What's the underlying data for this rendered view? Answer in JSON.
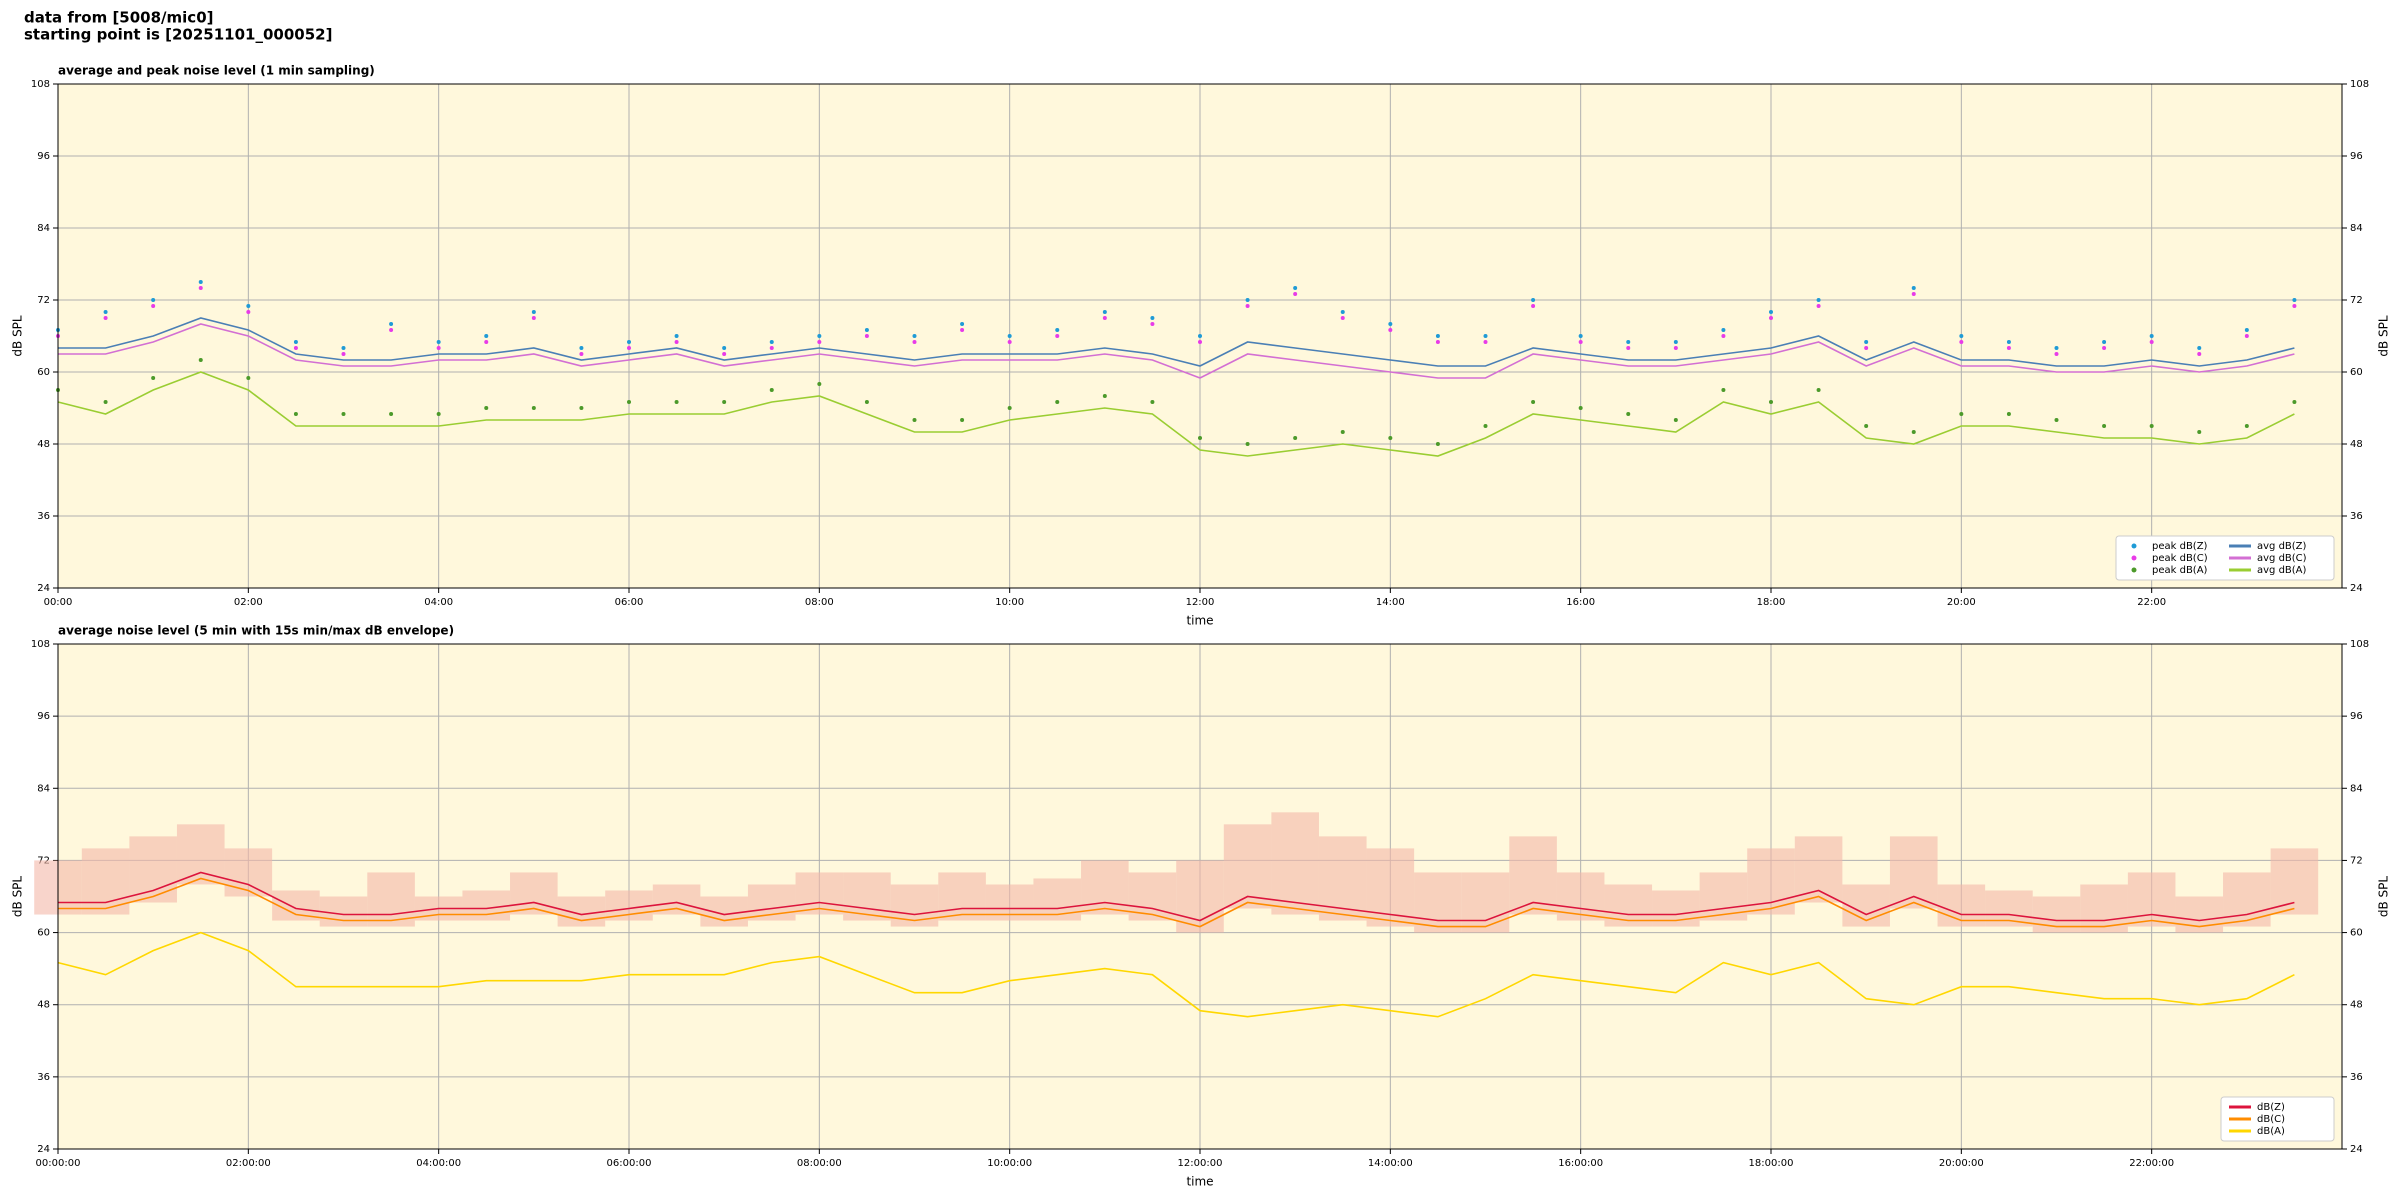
{
  "header": {
    "lines": [
      "data from [5008/mic0]",
      "starting point is [20251101_000052]"
    ]
  },
  "chart_data": [
    {
      "type": "scatter_line",
      "title": "average and peak noise level (1 min sampling)",
      "xlabel": "time",
      "ylabel": "dB SPL",
      "xlim": [
        0,
        1440
      ],
      "ylim": [
        24,
        108
      ],
      "yticks": [
        24,
        36,
        48,
        60,
        72,
        84,
        96,
        108
      ],
      "xticks": [
        {
          "value": 0,
          "label": "00:00"
        },
        {
          "value": 120,
          "label": "02:00"
        },
        {
          "value": 240,
          "label": "04:00"
        },
        {
          "value": 360,
          "label": "06:00"
        },
        {
          "value": 480,
          "label": "08:00"
        },
        {
          "value": 600,
          "label": "10:00"
        },
        {
          "value": 720,
          "label": "12:00"
        },
        {
          "value": 840,
          "label": "14:00"
        },
        {
          "value": 960,
          "label": "16:00"
        },
        {
          "value": 1080,
          "label": "18:00"
        },
        {
          "value": 1200,
          "label": "20:00"
        },
        {
          "value": 1320,
          "label": "22:00"
        }
      ],
      "grid": true,
      "legend": "lower right",
      "x": [
        0,
        30,
        60,
        90,
        120,
        150,
        180,
        210,
        240,
        270,
        300,
        330,
        360,
        390,
        420,
        450,
        480,
        510,
        540,
        570,
        600,
        630,
        660,
        690,
        720,
        750,
        780,
        810,
        840,
        870,
        900,
        930,
        960,
        990,
        1020,
        1050,
        1080,
        1110,
        1140,
        1170,
        1200,
        1230,
        1260,
        1290,
        1320,
        1350,
        1380,
        1410
      ],
      "series": [
        {
          "name": "peak dB(Z)",
          "kind": "scatter",
          "color": "#1f9bd6",
          "values": [
            67,
            70,
            72,
            75,
            71,
            65,
            64,
            68,
            65,
            66,
            70,
            64,
            65,
            66,
            64,
            65,
            66,
            67,
            66,
            68,
            66,
            67,
            70,
            69,
            66,
            72,
            74,
            70,
            68,
            66,
            66,
            72,
            66,
            65,
            65,
            67,
            70,
            72,
            65,
            74,
            66,
            65,
            64,
            65,
            66,
            64,
            67,
            72
          ]
        },
        {
          "name": "peak dB(C)",
          "kind": "scatter",
          "color": "#e83be8",
          "values": [
            66,
            69,
            71,
            74,
            70,
            64,
            63,
            67,
            64,
            65,
            69,
            63,
            64,
            65,
            63,
            64,
            65,
            66,
            65,
            67,
            65,
            66,
            69,
            68,
            65,
            71,
            73,
            69,
            67,
            65,
            65,
            71,
            65,
            64,
            64,
            66,
            69,
            71,
            64,
            73,
            65,
            64,
            63,
            64,
            65,
            63,
            66,
            71
          ]
        },
        {
          "name": "peak dB(A)",
          "kind": "scatter",
          "color": "#4c9a2a",
          "values": [
            57,
            55,
            59,
            62,
            59,
            53,
            53,
            53,
            53,
            54,
            54,
            54,
            55,
            55,
            55,
            57,
            58,
            55,
            52,
            52,
            54,
            55,
            56,
            55,
            49,
            48,
            49,
            50,
            49,
            48,
            51,
            55,
            54,
            53,
            52,
            57,
            55,
            57,
            51,
            50,
            53,
            53,
            52,
            51,
            51,
            50,
            51,
            55
          ]
        },
        {
          "name": "avg dB(Z)",
          "kind": "line",
          "color": "#4a7fb5",
          "values": [
            64,
            64,
            66,
            69,
            67,
            63,
            62,
            62,
            63,
            63,
            64,
            62,
            63,
            64,
            62,
            63,
            64,
            63,
            62,
            63,
            63,
            63,
            64,
            63,
            61,
            65,
            64,
            63,
            62,
            61,
            61,
            64,
            63,
            62,
            62,
            63,
            64,
            66,
            62,
            65,
            62,
            62,
            61,
            61,
            62,
            61,
            62,
            64
          ]
        },
        {
          "name": "avg dB(C)",
          "kind": "line",
          "color": "#d36fd3",
          "values": [
            63,
            63,
            65,
            68,
            66,
            62,
            61,
            61,
            62,
            62,
            63,
            61,
            62,
            63,
            61,
            62,
            63,
            62,
            61,
            62,
            62,
            62,
            63,
            62,
            59,
            63,
            62,
            61,
            60,
            59,
            59,
            63,
            62,
            61,
            61,
            62,
            63,
            65,
            61,
            64,
            61,
            61,
            60,
            60,
            61,
            60,
            61,
            63
          ]
        },
        {
          "name": "avg dB(A)",
          "kind": "line",
          "color": "#9acd32",
          "values": [
            55,
            53,
            57,
            60,
            57,
            51,
            51,
            51,
            51,
            52,
            52,
            52,
            53,
            53,
            53,
            55,
            56,
            53,
            50,
            50,
            52,
            53,
            54,
            53,
            47,
            46,
            47,
            48,
            47,
            46,
            49,
            53,
            52,
            51,
            50,
            55,
            53,
            55,
            49,
            48,
            51,
            51,
            50,
            49,
            49,
            48,
            49,
            53
          ]
        }
      ]
    },
    {
      "type": "envelope_line",
      "title": "average noise level (5 min with 15s min/max dB envelope)",
      "xlabel": "time",
      "ylabel": "dB SPL",
      "xlim": [
        0,
        1440
      ],
      "ylim": [
        24,
        108
      ],
      "yticks": [
        24,
        36,
        48,
        60,
        72,
        84,
        96,
        108
      ],
      "xticks": [
        {
          "value": 0,
          "label": "00:00:00"
        },
        {
          "value": 120,
          "label": "02:00:00"
        },
        {
          "value": 240,
          "label": "04:00:00"
        },
        {
          "value": 360,
          "label": "06:00:00"
        },
        {
          "value": 480,
          "label": "08:00:00"
        },
        {
          "value": 600,
          "label": "10:00:00"
        },
        {
          "value": 720,
          "label": "12:00:00"
        },
        {
          "value": 840,
          "label": "14:00:00"
        },
        {
          "value": 960,
          "label": "16:00:00"
        },
        {
          "value": 1080,
          "label": "18:00:00"
        },
        {
          "value": 1200,
          "label": "20:00:00"
        },
        {
          "value": 1320,
          "label": "22:00:00"
        }
      ],
      "grid": true,
      "legend": "lower right",
      "x": [
        0,
        30,
        60,
        90,
        120,
        150,
        180,
        210,
        240,
        270,
        300,
        330,
        360,
        390,
        420,
        450,
        480,
        510,
        540,
        570,
        600,
        630,
        660,
        690,
        720,
        750,
        780,
        810,
        840,
        870,
        900,
        930,
        960,
        990,
        1020,
        1050,
        1080,
        1110,
        1140,
        1170,
        1200,
        1230,
        1260,
        1290,
        1320,
        1350,
        1380,
        1410
      ],
      "envelope": {
        "color": "#f4b8a8",
        "upper": [
          72,
          74,
          76,
          78,
          74,
          67,
          66,
          70,
          66,
          67,
          70,
          66,
          67,
          68,
          66,
          68,
          70,
          70,
          68,
          70,
          68,
          69,
          72,
          70,
          72,
          78,
          80,
          76,
          74,
          70,
          70,
          76,
          70,
          68,
          67,
          70,
          74,
          76,
          68,
          76,
          68,
          67,
          66,
          68,
          70,
          66,
          70,
          74
        ],
        "lower": [
          63,
          63,
          65,
          68,
          66,
          62,
          61,
          61,
          62,
          62,
          63,
          61,
          62,
          63,
          61,
          62,
          63,
          62,
          61,
          62,
          62,
          62,
          63,
          62,
          60,
          64,
          63,
          62,
          61,
          60,
          60,
          63,
          62,
          61,
          61,
          62,
          63,
          65,
          61,
          64,
          61,
          61,
          60,
          60,
          61,
          60,
          61,
          63
        ]
      },
      "series": [
        {
          "name": "dB(Z)",
          "kind": "line",
          "color": "#dc143c",
          "values": [
            65,
            65,
            67,
            70,
            68,
            64,
            63,
            63,
            64,
            64,
            65,
            63,
            64,
            65,
            63,
            64,
            65,
            64,
            63,
            64,
            64,
            64,
            65,
            64,
            62,
            66,
            65,
            64,
            63,
            62,
            62,
            65,
            64,
            63,
            63,
            64,
            65,
            67,
            63,
            66,
            63,
            63,
            62,
            62,
            63,
            62,
            63,
            65
          ]
        },
        {
          "name": "dB(C)",
          "kind": "line",
          "color": "#ff8c00",
          "values": [
            64,
            64,
            66,
            69,
            67,
            63,
            62,
            62,
            63,
            63,
            64,
            62,
            63,
            64,
            62,
            63,
            64,
            63,
            62,
            63,
            63,
            63,
            64,
            63,
            61,
            65,
            64,
            63,
            62,
            61,
            61,
            64,
            63,
            62,
            62,
            63,
            64,
            66,
            62,
            65,
            62,
            62,
            61,
            61,
            62,
            61,
            62,
            64
          ]
        },
        {
          "name": "dB(A)",
          "kind": "line",
          "color": "#ffd700",
          "values": [
            55,
            53,
            57,
            60,
            57,
            51,
            51,
            51,
            51,
            52,
            52,
            52,
            53,
            53,
            53,
            55,
            56,
            53,
            50,
            50,
            52,
            53,
            54,
            53,
            47,
            46,
            47,
            48,
            47,
            46,
            49,
            53,
            52,
            51,
            50,
            55,
            53,
            55,
            49,
            48,
            51,
            51,
            50,
            49,
            49,
            48,
            49,
            53
          ]
        }
      ]
    }
  ]
}
